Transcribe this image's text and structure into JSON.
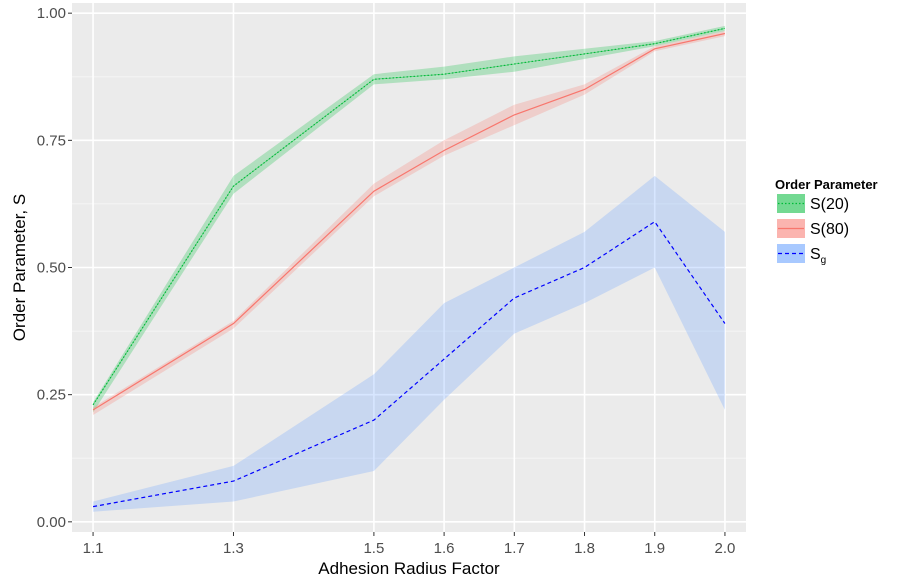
{
  "chart_data": {
    "type": "line",
    "xlabel": "Adhesion Radius Factor",
    "ylabel": "Order Parameter, S",
    "x": [
      1.1,
      1.3,
      1.5,
      1.6,
      1.7,
      1.8,
      1.9,
      2.0
    ],
    "x_tick_labels": [
      "1.1",
      "1.3",
      "1.5",
      "1.6",
      "1.7",
      "1.8",
      "1.9",
      "2.0"
    ],
    "y_ticks": [
      0.0,
      0.25,
      0.5,
      0.75,
      1.0
    ],
    "y_tick_labels": [
      "0.00",
      "0.25",
      "0.50",
      "0.75",
      "1.00"
    ],
    "xlim": [
      1.07,
      2.03
    ],
    "ylim": [
      -0.02,
      1.02
    ],
    "grid": true,
    "legend": {
      "title": "Order Parameter",
      "placement": "right",
      "entries": [
        {
          "label": "S(20)"
        },
        {
          "label": "S(80)"
        },
        {
          "label": "S",
          "subscript": "g"
        }
      ]
    },
    "series": [
      {
        "name": "S(20)",
        "color": "#00ba38",
        "fill": "#00ba38",
        "linestyle": "dotted",
        "values": [
          0.23,
          0.66,
          0.87,
          0.88,
          0.9,
          0.92,
          0.94,
          0.97
        ],
        "lower": [
          0.215,
          0.645,
          0.86,
          0.87,
          0.885,
          0.91,
          0.935,
          0.965
        ],
        "upper": [
          0.235,
          0.68,
          0.88,
          0.895,
          0.915,
          0.93,
          0.945,
          0.975
        ]
      },
      {
        "name": "S(80)",
        "color": "#f8766d",
        "fill": "#f8766d",
        "linestyle": "solid",
        "values": [
          0.22,
          0.39,
          0.65,
          0.73,
          0.8,
          0.85,
          0.93,
          0.96
        ],
        "lower": [
          0.21,
          0.38,
          0.64,
          0.72,
          0.78,
          0.84,
          0.925,
          0.955
        ],
        "upper": [
          0.225,
          0.395,
          0.665,
          0.75,
          0.82,
          0.86,
          0.935,
          0.965
        ]
      },
      {
        "name": "Sg",
        "color": "#0000ff",
        "fill": "#619cff",
        "linestyle": "dashed",
        "values": [
          0.03,
          0.08,
          0.2,
          0.32,
          0.44,
          0.5,
          0.59,
          0.39
        ],
        "lower": [
          0.02,
          0.04,
          0.1,
          0.24,
          0.37,
          0.43,
          0.5,
          0.22
        ],
        "upper": [
          0.04,
          0.11,
          0.29,
          0.43,
          0.5,
          0.57,
          0.68,
          0.57
        ]
      }
    ]
  },
  "colors": {
    "panel_background": "#ebebeb",
    "grid_major": "#ffffff",
    "grid_minor": "#f5f5f5"
  }
}
